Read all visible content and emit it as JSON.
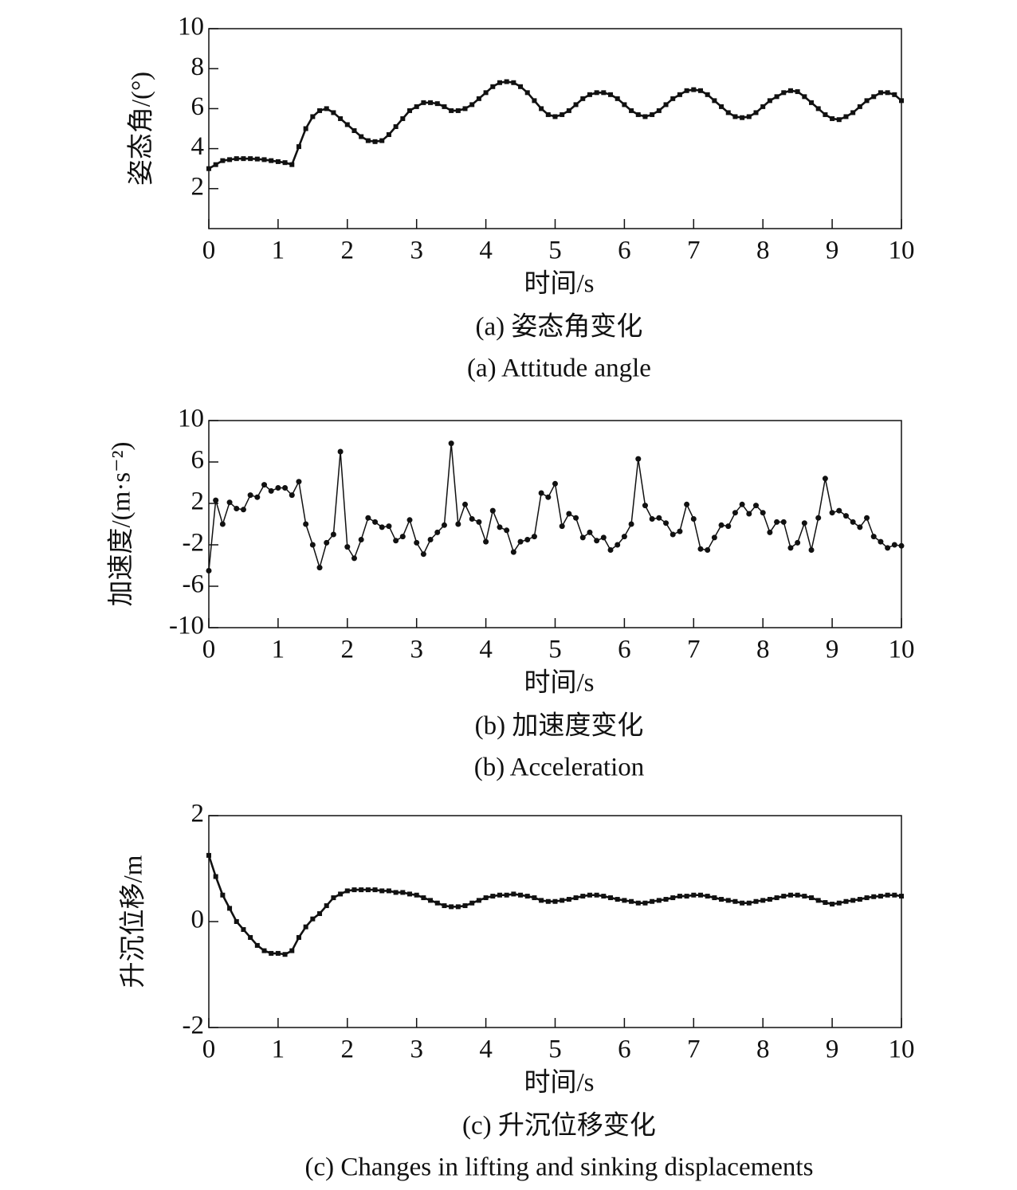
{
  "chart_data": [
    {
      "type": "line",
      "marker": "square",
      "line_width": 2.6,
      "color": "#111111",
      "x_label": "时间/s",
      "y_label": "姿态角/(°)",
      "caption": "(a) 姿态角变化",
      "caption_en": "(a) Attitude angle",
      "xlim": [
        0,
        10
      ],
      "xticks": [
        0,
        1,
        2,
        3,
        4,
        5,
        6,
        7,
        8,
        9,
        10
      ],
      "ylim": [
        0,
        10
      ],
      "yticks": [
        2,
        4,
        6,
        8,
        10
      ],
      "grid": false,
      "x": [
        0,
        0.1,
        0.2,
        0.3,
        0.4,
        0.5,
        0.6,
        0.7,
        0.8,
        0.9,
        1,
        1.1,
        1.2,
        1.3,
        1.4,
        1.5,
        1.6,
        1.7,
        1.8,
        1.9,
        2,
        2.1,
        2.2,
        2.3,
        2.4,
        2.5,
        2.6,
        2.7,
        2.8,
        2.9,
        3,
        3.1,
        3.2,
        3.3,
        3.4,
        3.5,
        3.6,
        3.7,
        3.8,
        3.9,
        4,
        4.1,
        4.2,
        4.3,
        4.4,
        4.5,
        4.6,
        4.7,
        4.8,
        4.9,
        5,
        5.1,
        5.2,
        5.3,
        5.4,
        5.5,
        5.6,
        5.7,
        5.8,
        5.9,
        6,
        6.1,
        6.2,
        6.3,
        6.4,
        6.5,
        6.6,
        6.7,
        6.8,
        6.9,
        7,
        7.1,
        7.2,
        7.3,
        7.4,
        7.5,
        7.6,
        7.7,
        7.8,
        7.9,
        8,
        8.1,
        8.2,
        8.3,
        8.4,
        8.5,
        8.6,
        8.7,
        8.8,
        8.9,
        9,
        9.1,
        9.2,
        9.3,
        9.4,
        9.5,
        9.6,
        9.7,
        9.8,
        9.9,
        10
      ],
      "values": [
        3.0,
        3.2,
        3.4,
        3.45,
        3.5,
        3.5,
        3.5,
        3.48,
        3.45,
        3.4,
        3.35,
        3.3,
        3.2,
        4.1,
        5.0,
        5.6,
        5.9,
        6.0,
        5.8,
        5.5,
        5.2,
        4.9,
        4.6,
        4.4,
        4.35,
        4.4,
        4.7,
        5.1,
        5.5,
        5.9,
        6.1,
        6.3,
        6.3,
        6.25,
        6.1,
        5.9,
        5.9,
        6.0,
        6.2,
        6.5,
        6.8,
        7.1,
        7.3,
        7.35,
        7.3,
        7.1,
        6.8,
        6.4,
        6.0,
        5.7,
        5.6,
        5.7,
        5.9,
        6.2,
        6.5,
        6.7,
        6.8,
        6.8,
        6.7,
        6.5,
        6.2,
        5.9,
        5.7,
        5.6,
        5.7,
        5.9,
        6.2,
        6.5,
        6.7,
        6.9,
        6.95,
        6.9,
        6.7,
        6.4,
        6.1,
        5.8,
        5.6,
        5.55,
        5.6,
        5.8,
        6.1,
        6.4,
        6.6,
        6.8,
        6.9,
        6.85,
        6.6,
        6.3,
        6.0,
        5.7,
        5.5,
        5.45,
        5.6,
        5.8,
        6.1,
        6.4,
        6.6,
        6.8,
        6.8,
        6.7,
        6.4
      ]
    },
    {
      "type": "line",
      "marker": "circle",
      "line_width": 1.5,
      "color": "#111111",
      "x_label": "时间/s",
      "y_label": "加速度/(m·s⁻²)",
      "caption": "(b) 加速度变化",
      "caption_en": "(b) Acceleration",
      "xlim": [
        0,
        10
      ],
      "xticks": [
        0,
        1,
        2,
        3,
        4,
        5,
        6,
        7,
        8,
        9,
        10
      ],
      "ylim": [
        -10,
        10
      ],
      "yticks": [
        -10,
        -6,
        -2,
        2,
        6,
        10
      ],
      "grid": false,
      "x": [
        0,
        0.1,
        0.2,
        0.3,
        0.4,
        0.5,
        0.6,
        0.7,
        0.8,
        0.9,
        1,
        1.1,
        1.2,
        1.3,
        1.4,
        1.5,
        1.6,
        1.7,
        1.8,
        1.9,
        2,
        2.1,
        2.2,
        2.3,
        2.4,
        2.5,
        2.6,
        2.7,
        2.8,
        2.9,
        3,
        3.1,
        3.2,
        3.3,
        3.4,
        3.5,
        3.6,
        3.7,
        3.8,
        3.9,
        4,
        4.1,
        4.2,
        4.3,
        4.4,
        4.5,
        4.6,
        4.7,
        4.8,
        4.9,
        5,
        5.1,
        5.2,
        5.3,
        5.4,
        5.5,
        5.6,
        5.7,
        5.8,
        5.9,
        6,
        6.1,
        6.2,
        6.3,
        6.4,
        6.5,
        6.6,
        6.7,
        6.8,
        6.9,
        7,
        7.1,
        7.2,
        7.3,
        7.4,
        7.5,
        7.6,
        7.7,
        7.8,
        7.9,
        8,
        8.1,
        8.2,
        8.3,
        8.4,
        8.5,
        8.6,
        8.7,
        8.8,
        8.9,
        9,
        9.1,
        9.2,
        9.3,
        9.4,
        9.5,
        9.6,
        9.7,
        9.8,
        9.9,
        10
      ],
      "values": [
        -4.5,
        2.3,
        0,
        2.1,
        1.5,
        1.4,
        2.8,
        2.6,
        3.8,
        3.2,
        3.5,
        3.5,
        2.8,
        4.1,
        0,
        -2,
        -4.2,
        -1.8,
        -1,
        7,
        -2.2,
        -3.3,
        -1.5,
        0.6,
        0.2,
        -0.3,
        -0.2,
        -1.6,
        -1.2,
        0.4,
        -1.8,
        -2.9,
        -1.5,
        -0.8,
        -0.1,
        7.8,
        0,
        1.9,
        0.5,
        0.2,
        -1.7,
        1.3,
        -0.3,
        -0.6,
        -2.7,
        -1.7,
        -1.5,
        -1.2,
        3,
        2.6,
        3.9,
        -0.2,
        1,
        0.6,
        -1.3,
        -0.8,
        -1.6,
        -1.3,
        -2.5,
        -2,
        -1.2,
        0,
        6.3,
        1.8,
        0.5,
        0.6,
        0.1,
        -1,
        -0.7,
        1.9,
        0.5,
        -2.4,
        -2.5,
        -1.3,
        -0.1,
        -0.2,
        1.1,
        1.9,
        1.0,
        1.8,
        1.1,
        -0.8,
        0.2,
        0.2,
        -2.3,
        -1.8,
        0.1,
        -2.5,
        0.6,
        4.4,
        1.1,
        1.3,
        0.8,
        0.2,
        -0.3,
        0.6,
        -1.2,
        -1.7,
        -2.3,
        -2,
        -2.1
      ]
    },
    {
      "type": "line",
      "marker": "square",
      "line_width": 2.6,
      "color": "#111111",
      "x_label": "时间/s",
      "y_label": "升沉位移/m",
      "caption": "(c) 升沉位移变化",
      "caption_en": "(c) Changes in lifting and sinking displacements",
      "xlim": [
        0,
        10
      ],
      "xticks": [
        0,
        1,
        2,
        3,
        4,
        5,
        6,
        7,
        8,
        9,
        10
      ],
      "ylim": [
        -2,
        2
      ],
      "yticks": [
        -2,
        0,
        2
      ],
      "grid": false,
      "x": [
        0,
        0.1,
        0.2,
        0.3,
        0.4,
        0.5,
        0.6,
        0.7,
        0.8,
        0.9,
        1,
        1.1,
        1.2,
        1.3,
        1.4,
        1.5,
        1.6,
        1.7,
        1.8,
        1.9,
        2,
        2.1,
        2.2,
        2.3,
        2.4,
        2.5,
        2.6,
        2.7,
        2.8,
        2.9,
        3,
        3.1,
        3.2,
        3.3,
        3.4,
        3.5,
        3.6,
        3.7,
        3.8,
        3.9,
        4,
        4.1,
        4.2,
        4.3,
        4.4,
        4.5,
        4.6,
        4.7,
        4.8,
        4.9,
        5,
        5.1,
        5.2,
        5.3,
        5.4,
        5.5,
        5.6,
        5.7,
        5.8,
        5.9,
        6,
        6.1,
        6.2,
        6.3,
        6.4,
        6.5,
        6.6,
        6.7,
        6.8,
        6.9,
        7,
        7.1,
        7.2,
        7.3,
        7.4,
        7.5,
        7.6,
        7.7,
        7.8,
        7.9,
        8,
        8.1,
        8.2,
        8.3,
        8.4,
        8.5,
        8.6,
        8.7,
        8.8,
        8.9,
        9,
        9.1,
        9.2,
        9.3,
        9.4,
        9.5,
        9.6,
        9.7,
        9.8,
        9.9,
        10
      ],
      "values": [
        1.25,
        0.85,
        0.5,
        0.25,
        0.0,
        -0.15,
        -0.3,
        -0.45,
        -0.55,
        -0.6,
        -0.6,
        -0.62,
        -0.55,
        -0.3,
        -0.1,
        0.05,
        0.15,
        0.3,
        0.45,
        0.52,
        0.58,
        0.6,
        0.6,
        0.6,
        0.6,
        0.58,
        0.58,
        0.55,
        0.55,
        0.52,
        0.5,
        0.45,
        0.4,
        0.35,
        0.3,
        0.28,
        0.28,
        0.3,
        0.35,
        0.4,
        0.45,
        0.48,
        0.5,
        0.5,
        0.52,
        0.5,
        0.48,
        0.45,
        0.4,
        0.38,
        0.38,
        0.4,
        0.42,
        0.45,
        0.48,
        0.5,
        0.5,
        0.48,
        0.45,
        0.42,
        0.4,
        0.38,
        0.35,
        0.35,
        0.38,
        0.4,
        0.42,
        0.45,
        0.48,
        0.48,
        0.5,
        0.5,
        0.48,
        0.45,
        0.42,
        0.4,
        0.38,
        0.35,
        0.35,
        0.38,
        0.4,
        0.42,
        0.45,
        0.48,
        0.5,
        0.5,
        0.48,
        0.45,
        0.4,
        0.36,
        0.33,
        0.35,
        0.38,
        0.4,
        0.42,
        0.45,
        0.47,
        0.48,
        0.5,
        0.5,
        0.48
      ]
    }
  ]
}
